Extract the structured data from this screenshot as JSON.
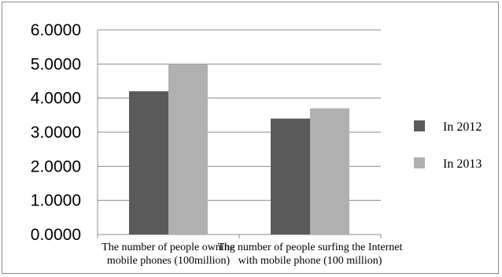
{
  "chart_data": {
    "type": "bar",
    "title": "",
    "xlabel": "",
    "ylabel": "",
    "ylim": [
      0,
      6
    ],
    "yticks": [
      "0.0000",
      "1.0000",
      "2.0000",
      "3.0000",
      "4.0000",
      "5.0000",
      "6.0000"
    ],
    "categories": [
      [
        "The number of people owning",
        "mobile phones (100million)"
      ],
      [
        "The number of people surfing the Internet",
        "with mobile phone (100 million)"
      ]
    ],
    "series": [
      {
        "name": "In 2012",
        "color": "#5a5a5a",
        "values": [
          4.2,
          3.4
        ]
      },
      {
        "name": "In 2013",
        "color": "#b0b0b0",
        "values": [
          5.0,
          3.7
        ]
      }
    ],
    "grid": true,
    "legend_position": "right"
  }
}
